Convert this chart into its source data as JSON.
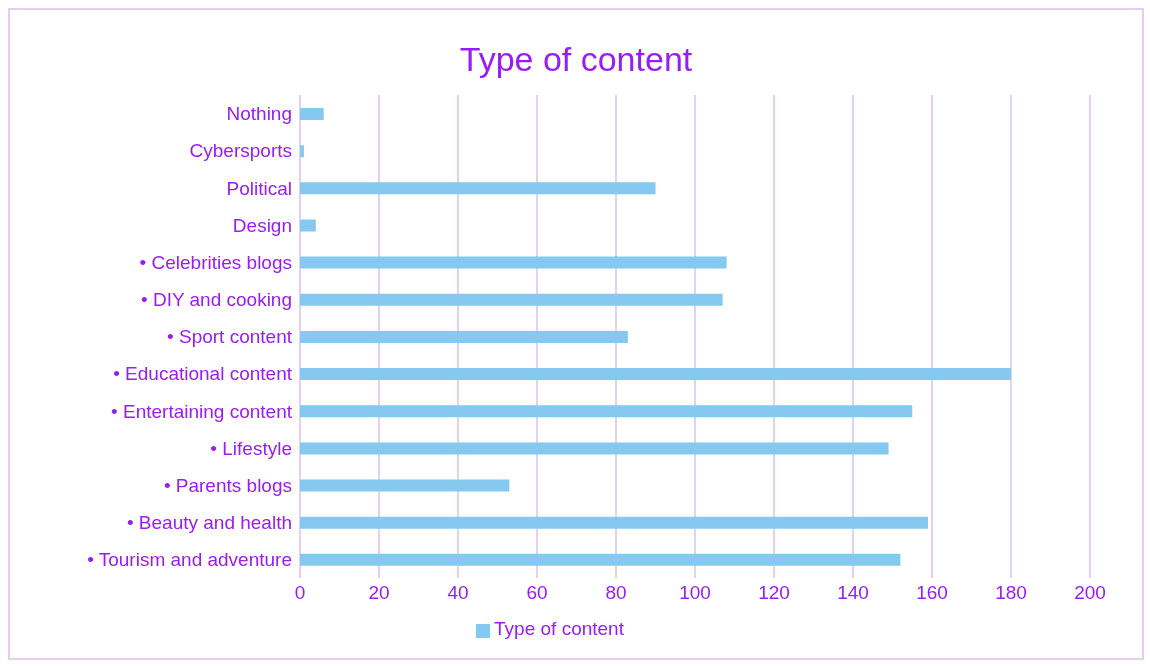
{
  "chart_data": {
    "type": "bar",
    "orientation": "horizontal",
    "title": "Type of content",
    "categories": [
      "Nothing",
      "Cybersports",
      "Political",
      "Design",
      "• Celebrities blogs",
      "• DIY and cooking",
      "• Sport content",
      "• Educational content",
      "• Entertaining content",
      "• Lifestyle",
      "• Parents blogs",
      "• Beauty and health",
      "• Tourism and adventure"
    ],
    "series": [
      {
        "name": "Type of content",
        "color": "#85c8f0",
        "values": [
          6,
          1,
          90,
          4,
          108,
          107,
          83,
          180,
          155,
          149,
          53,
          159,
          152
        ]
      }
    ],
    "xlim": [
      0,
      200
    ],
    "xticks": [
      0,
      20,
      40,
      60,
      80,
      100,
      120,
      140,
      160,
      180,
      200
    ],
    "grid": "x",
    "legend": "bottom"
  }
}
